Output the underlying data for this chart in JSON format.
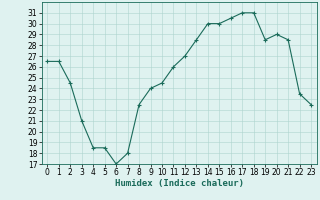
{
  "x": [
    0,
    1,
    2,
    3,
    4,
    5,
    6,
    7,
    8,
    9,
    10,
    11,
    12,
    13,
    14,
    15,
    16,
    17,
    18,
    19,
    20,
    21,
    22,
    23
  ],
  "y": [
    26.5,
    26.5,
    24.5,
    21,
    18.5,
    18.5,
    17,
    18,
    22.5,
    24,
    24.5,
    26,
    27,
    28.5,
    30,
    30,
    30.5,
    31,
    31,
    28.5,
    29,
    28.5,
    23.5,
    22.5
  ],
  "xlabel": "Humidex (Indice chaleur)",
  "ylim": [
    17,
    32
  ],
  "xlim": [
    -0.5,
    23.5
  ],
  "yticks": [
    17,
    18,
    19,
    20,
    21,
    22,
    23,
    24,
    25,
    26,
    27,
    28,
    29,
    30,
    31
  ],
  "xticks": [
    0,
    1,
    2,
    3,
    4,
    5,
    6,
    7,
    8,
    9,
    10,
    11,
    12,
    13,
    14,
    15,
    16,
    17,
    18,
    19,
    20,
    21,
    22,
    23
  ],
  "line_color": "#1a6b5a",
  "marker": "+",
  "bg_color": "#dff2f0",
  "grid_color": "#aed4ce",
  "label_fontsize": 6.5,
  "tick_fontsize": 5.5
}
